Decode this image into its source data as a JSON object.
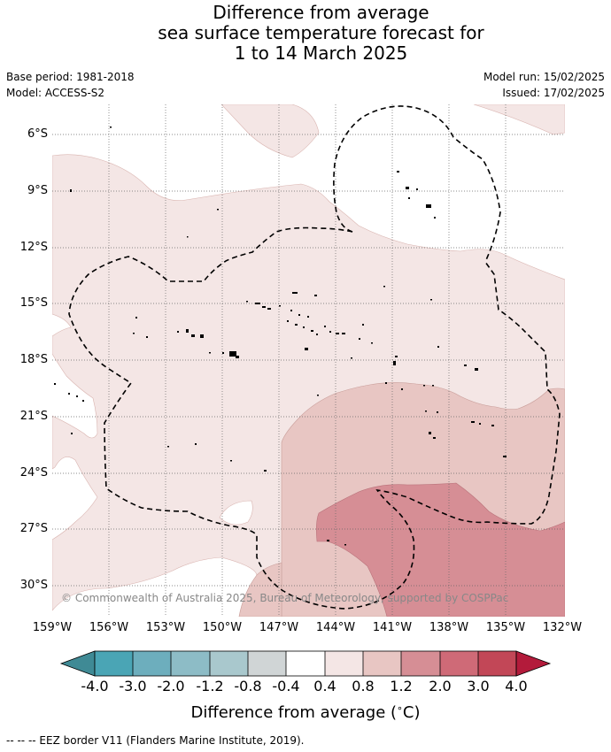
{
  "title": {
    "line1": "Difference from average",
    "line2": "sea surface temperature forecast for",
    "line3": "1 to 14 March 2025"
  },
  "meta": {
    "base_period": "Base period: 1981-2018",
    "model": "Model: ACCESS-S2",
    "model_run": "Model run: 15/02/2025",
    "issued": "Issued: 17/02/2025"
  },
  "copyright": "© Commonwealth of Australia 2025, Bureau of Meteorology, supported by COSPPac",
  "axes": {
    "lat_labels": [
      "6°S",
      "9°S",
      "12°S",
      "15°S",
      "18°S",
      "21°S",
      "24°S",
      "27°S",
      "30°S"
    ],
    "lon_labels": [
      "159°W",
      "156°W",
      "153°W",
      "150°W",
      "147°W",
      "144°W",
      "141°W",
      "138°W",
      "135°W",
      "132°W"
    ]
  },
  "colorbar": {
    "title": "Difference from average (",
    "unit": "C)",
    "ticks": [
      "-4.0",
      "-3.0",
      "-2.0",
      "-1.2",
      "-0.8",
      "-0.4",
      "0.4",
      "0.8",
      "1.2",
      "2.0",
      "3.0",
      "4.0"
    ],
    "colors": {
      "under": "#3f8a95",
      "bins": [
        "#4aa5b5",
        "#6daebd",
        "#8dbcc6",
        "#a9c8cd",
        "#d0d5d6",
        "#ffffff",
        "#f4e6e5",
        "#e8c6c3",
        "#d68e95",
        "#cf6a77",
        "#c24757"
      ],
      "over": "#b31b3b"
    }
  },
  "footer": "--  --  -- EEZ border V11 (Flanders Marine Institute, 2019)."
}
